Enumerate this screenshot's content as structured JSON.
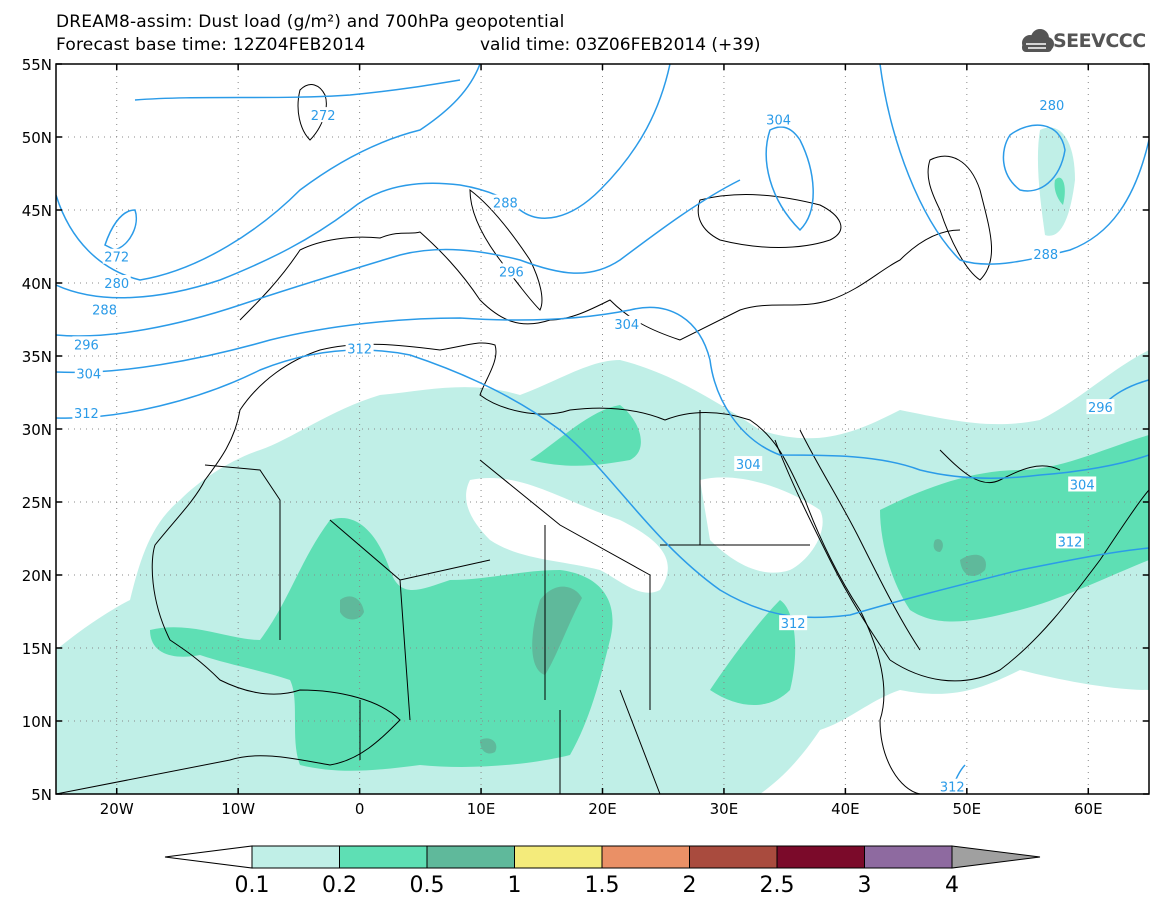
{
  "title": {
    "line1": "DREAM8-assim: Dust load (g/m²) and 700hPa geopotential",
    "line2": "Forecast base time: 12Z04FEB2014",
    "valid": "valid time: 03Z06FEB2014 (+39)"
  },
  "logo": {
    "text": "SEEVCCC",
    "icon": "cloud-logo-icon"
  },
  "axes": {
    "lat_ticks": [
      {
        "value": 55,
        "label": "55N"
      },
      {
        "value": 50,
        "label": "50N"
      },
      {
        "value": 45,
        "label": "45N"
      },
      {
        "value": 40,
        "label": "40N"
      },
      {
        "value": 35,
        "label": "35N"
      },
      {
        "value": 30,
        "label": "30N"
      },
      {
        "value": 25,
        "label": "25N"
      },
      {
        "value": 20,
        "label": "20N"
      },
      {
        "value": 15,
        "label": "15N"
      },
      {
        "value": 10,
        "label": "10N"
      },
      {
        "value": 5,
        "label": "5N"
      }
    ],
    "lon_ticks": [
      {
        "value": -20,
        "label": "20W"
      },
      {
        "value": -10,
        "label": "10W"
      },
      {
        "value": 0,
        "label": "0"
      },
      {
        "value": 10,
        "label": "10E"
      },
      {
        "value": 20,
        "label": "20E"
      },
      {
        "value": 30,
        "label": "30E"
      },
      {
        "value": 40,
        "label": "40E"
      },
      {
        "value": 50,
        "label": "50E"
      },
      {
        "value": 60,
        "label": "60E"
      }
    ],
    "lon_range": [
      -25,
      65
    ],
    "lat_range": [
      5,
      55
    ],
    "grid": "dotted"
  },
  "colorbar": {
    "colors": [
      "#ffffff",
      "#c0efe7",
      "#5edfb4",
      "#5fb99b",
      "#f4eb7b",
      "#ea9066",
      "#a94b3e",
      "#7b0a2a",
      "#8e6aa0",
      "#a0a0a0"
    ],
    "labels": [
      "0.1",
      "0.2",
      "0.5",
      "1",
      "1.5",
      "2",
      "2.5",
      "3",
      "4"
    ]
  },
  "contour_labels": [
    {
      "lon": -3,
      "lat": 51.5,
      "text": "272"
    },
    {
      "lon": -20,
      "lat": 41.8,
      "text": "272"
    },
    {
      "lon": -20,
      "lat": 40,
      "text": "280"
    },
    {
      "lon": -21,
      "lat": 38.2,
      "text": "288"
    },
    {
      "lon": -22.5,
      "lat": 35.8,
      "text": "296"
    },
    {
      "lon": -22.3,
      "lat": 33.8,
      "text": "304"
    },
    {
      "lon": -22.5,
      "lat": 31.1,
      "text": "312"
    },
    {
      "lon": 0,
      "lat": 35.5,
      "text": "312"
    },
    {
      "lon": 12,
      "lat": 45.5,
      "text": "288"
    },
    {
      "lon": 12.5,
      "lat": 40.8,
      "text": "296"
    },
    {
      "lon": 22,
      "lat": 37.2,
      "text": "304"
    },
    {
      "lon": 34.5,
      "lat": 51.2,
      "text": "304"
    },
    {
      "lon": 32,
      "lat": 27.6,
      "text": "304"
    },
    {
      "lon": 35.7,
      "lat": 16.7,
      "text": "312"
    },
    {
      "lon": 57,
      "lat": 52.2,
      "text": "280"
    },
    {
      "lon": 56.5,
      "lat": 42,
      "text": "288"
    },
    {
      "lon": 61,
      "lat": 31.5,
      "text": "296"
    },
    {
      "lon": 59.5,
      "lat": 26.2,
      "text": "304"
    },
    {
      "lon": 58.5,
      "lat": 22.3,
      "text": "312"
    },
    {
      "lon": 48.8,
      "lat": 5.5,
      "text": "312"
    }
  ]
}
